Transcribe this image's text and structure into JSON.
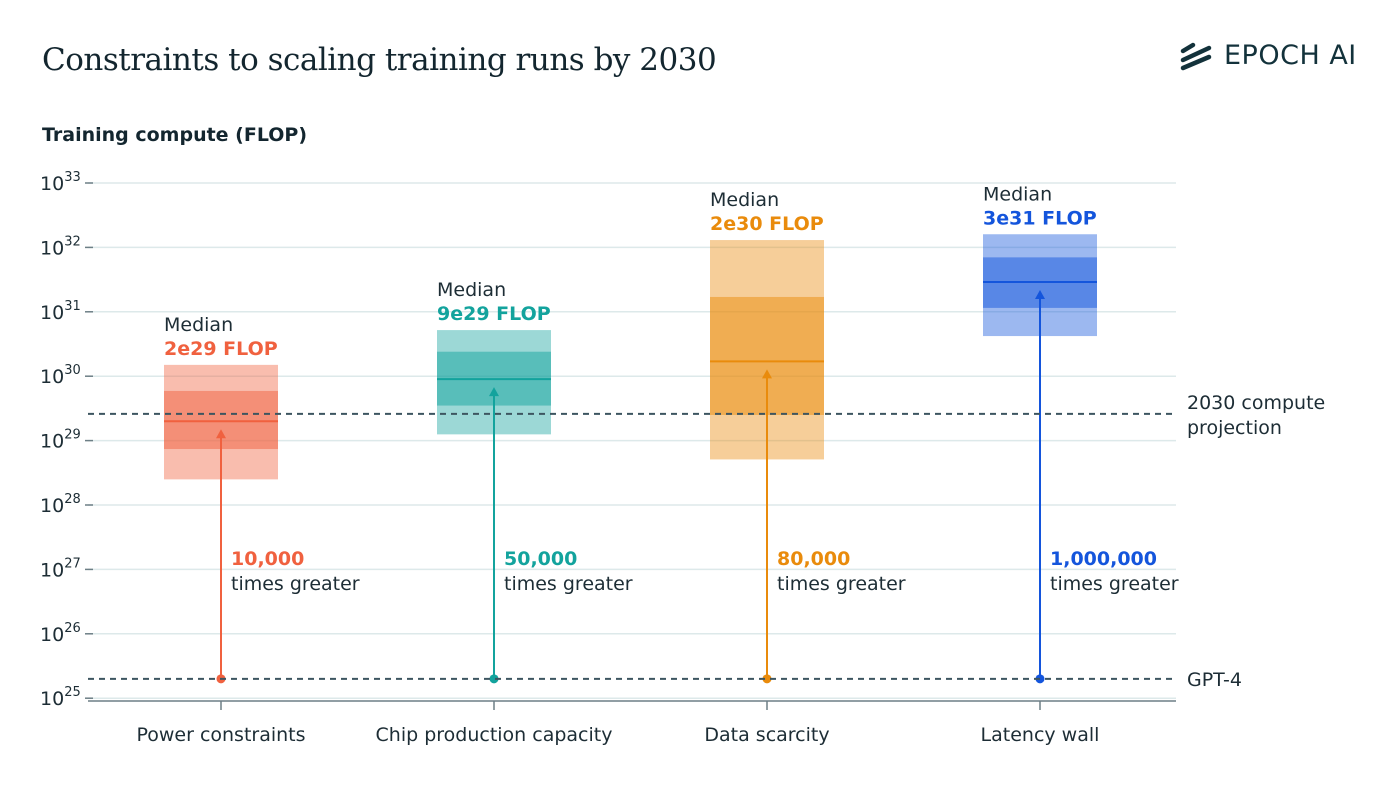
{
  "chart_data": {
    "type": "box",
    "title": "Constraints to scaling training runs by 2030",
    "ylabel": "Training compute (FLOP)",
    "yscale": "log",
    "ylim": [
      1e+25,
      1e+33
    ],
    "ytick_exponents": [
      25,
      26,
      27,
      28,
      29,
      30,
      31,
      32,
      33
    ],
    "grid": true,
    "categories": [
      "Power constraints",
      "Chip production capacity",
      "Data scarcity",
      "Latency wall"
    ],
    "series": [
      {
        "category": "Power constraints",
        "color": "#f0613f",
        "outer": [
          2.5e+28,
          1.5e+30
        ],
        "inner": [
          7.4e+28,
          5.9e+29
        ],
        "median": 2e+29,
        "median_label": "Median",
        "median_value_label": "2e29 FLOP",
        "factor_label": "10,000",
        "factor_suffix": "times greater"
      },
      {
        "category": "Chip production capacity",
        "color": "#13a39d",
        "outer": [
          1.25e+29,
          5.2e+30
        ],
        "inner": [
          3.5e+29,
          2.4e+30
        ],
        "median": 9e+29,
        "median_label": "Median",
        "median_value_label": "9e29 FLOP",
        "factor_label": "50,000",
        "factor_suffix": "times greater"
      },
      {
        "category": "Data scarcity",
        "color": "#e98b0c",
        "outer": [
          5.1e+28,
          1.3e+32
        ],
        "inner": [
          2.5e+29,
          1.7e+31
        ],
        "median": 1.7e+30,
        "median_label": "Median",
        "median_value_label": "2e30 FLOP",
        "factor_label": "80,000",
        "factor_suffix": "times greater"
      },
      {
        "category": "Latency wall",
        "color": "#1455dc",
        "outer": [
          4.2e+30,
          1.6e+32
        ],
        "inner": [
          1.15e+31,
          7e+31
        ],
        "median": 2.9e+31,
        "median_label": "Median",
        "median_value_label": "3e31 FLOP",
        "factor_label": "1,000,000",
        "factor_suffix": "times greater"
      }
    ],
    "reference_lines": [
      {
        "label_lines": [
          "2030 compute",
          "projection"
        ],
        "value": 2.6e+29
      },
      {
        "label_lines": [
          "GPT-4"
        ],
        "value": 2e+25
      }
    ]
  },
  "branding": {
    "logo_text": "EPOCH AI"
  }
}
